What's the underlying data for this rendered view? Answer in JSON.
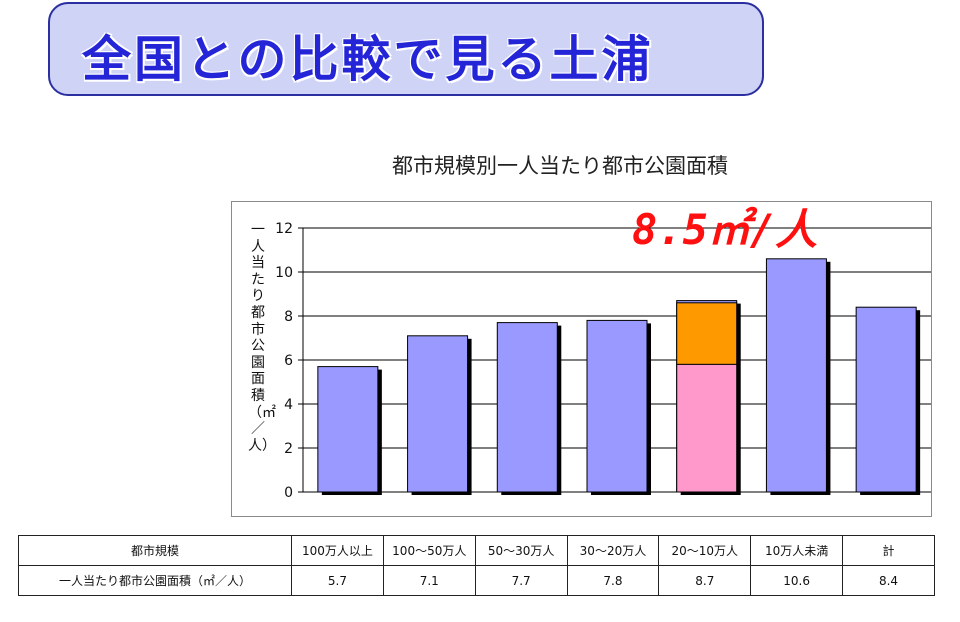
{
  "banner": {
    "title": "全国との比較で見る土浦"
  },
  "annotation": {
    "text": "8.5㎡/人",
    "value": 8.5
  },
  "colors": {
    "bar": "#9999ff",
    "highlight_base": "#ff99cc",
    "highlight_top": "#ff9900",
    "annotation": "#ff1010"
  },
  "chart_data": {
    "type": "bar",
    "title": "都市規模別一人当たり都市公園面積",
    "ylabel": "一人当たり都市公園面積（㎡／人）",
    "xlabel": "",
    "ylim": [
      0,
      12
    ],
    "yticks": [
      0,
      2,
      4,
      6,
      8,
      10,
      12
    ],
    "grid": "horizontal",
    "categories": [
      "100万人以上",
      "100〜50万人",
      "50〜30万人",
      "30〜20万人",
      "20〜10万人",
      "10万人未満",
      "計"
    ],
    "values": [
      5.7,
      7.1,
      7.7,
      7.8,
      8.7,
      10.6,
      8.4
    ],
    "highlight": {
      "category_index": 4,
      "stack": [
        5.8,
        2.8
      ]
    }
  },
  "table": {
    "header_label": "都市規模",
    "row_label": "一人当たり都市公園面積（㎡／人）",
    "columns": [
      "100万人以上",
      "100〜50万人",
      "50〜30万人",
      "30〜20万人",
      "20〜10万人",
      "10万人未満",
      "計"
    ],
    "values": [
      "5.7",
      "7.1",
      "7.7",
      "7.8",
      "8.7",
      "10.6",
      "8.4"
    ]
  }
}
